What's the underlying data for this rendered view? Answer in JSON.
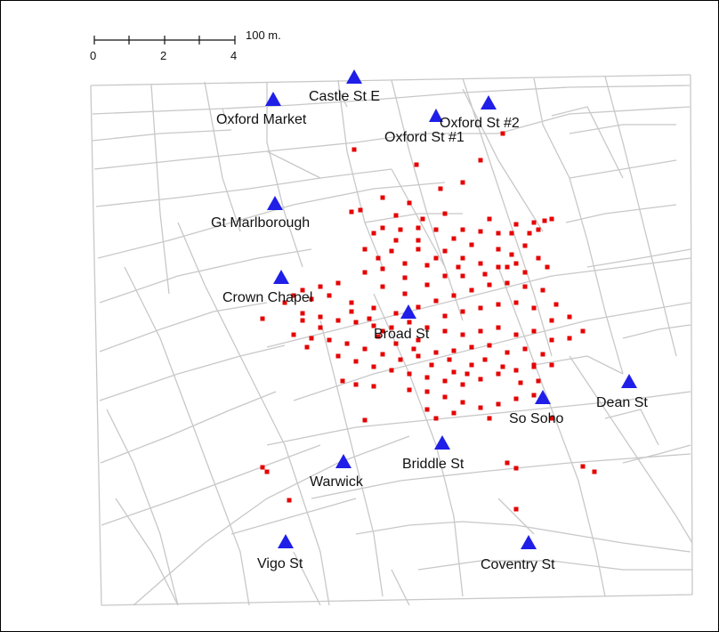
{
  "scale_bar": {
    "unit_label": "100 m.",
    "ticks": [
      "0",
      "2",
      "4"
    ]
  },
  "colors": {
    "street": "#c8c8c8",
    "pump": "#1f1fe8",
    "death": "#e60000",
    "outline": "#9a9a9a"
  },
  "pumps": [
    {
      "name": "Castle St E"
    },
    {
      "name": "Oxford Market"
    },
    {
      "name": "Oxford St #2"
    },
    {
      "name": "Oxford St #1"
    },
    {
      "name": "Gt Marlborough"
    },
    {
      "name": "Crown Chapel"
    },
    {
      "name": "Broad St"
    },
    {
      "name": "So Soho"
    },
    {
      "name": "Dean St"
    },
    {
      "name": "Briddle St"
    },
    {
      "name": "Warwick"
    },
    {
      "name": "Vigo St"
    },
    {
      "name": "Coventry St"
    }
  ]
}
